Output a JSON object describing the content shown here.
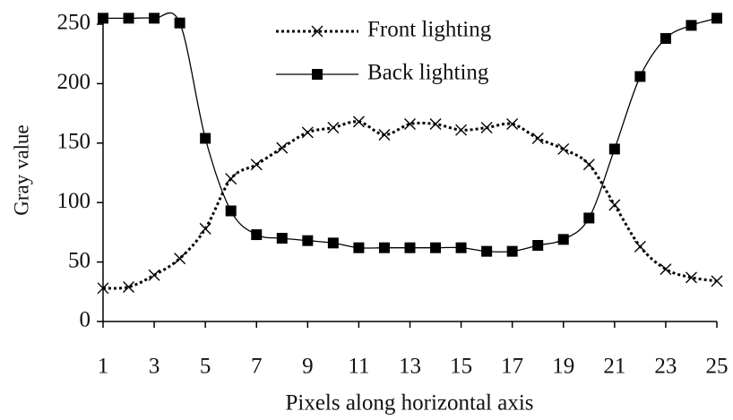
{
  "chart_data": {
    "type": "line",
    "x_label": "Pixels along horizontal axis",
    "y_label": "Gray value",
    "x": [
      1,
      2,
      3,
      4,
      5,
      6,
      7,
      8,
      9,
      10,
      11,
      12,
      13,
      14,
      15,
      16,
      17,
      18,
      19,
      20,
      21,
      22,
      23,
      24,
      25
    ],
    "series": [
      {
        "name": "Front lighting",
        "color": "#000000",
        "linestyle": "dotted",
        "marker": "x",
        "values": [
          28,
          29,
          39,
          53,
          78,
          120,
          132,
          146,
          159,
          163,
          168,
          157,
          166,
          166,
          161,
          163,
          166,
          154,
          145,
          132,
          98,
          63,
          44,
          37,
          34
        ]
      },
      {
        "name": "Back lighting",
        "color": "#000000",
        "linestyle": "solid",
        "marker": "square",
        "values": [
          255,
          255,
          255,
          251,
          154,
          93,
          73,
          70,
          68,
          66,
          62,
          62,
          62,
          62,
          62,
          59,
          59,
          64,
          69,
          87,
          145,
          206,
          238,
          249,
          255
        ]
      }
    ],
    "xlim": [
      1,
      25
    ],
    "xticks": [
      1,
      3,
      5,
      7,
      9,
      11,
      13,
      15,
      17,
      19,
      21,
      23,
      25
    ],
    "ylim": [
      0,
      250
    ],
    "yticks": [
      0,
      50,
      100,
      150,
      200,
      250
    ],
    "legend": "top"
  }
}
